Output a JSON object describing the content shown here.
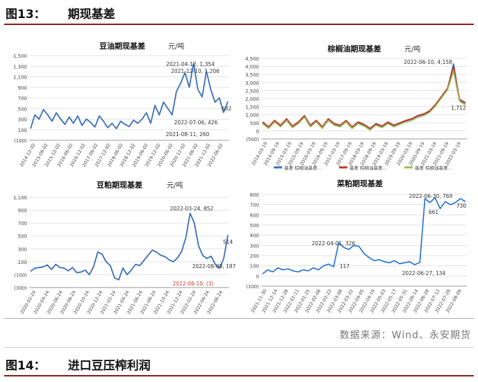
{
  "fig13": {
    "title": "图13：",
    "subtitle": "期现基差"
  },
  "fig14": {
    "title": "图14：",
    "subtitle": "进口豆压榨利润"
  },
  "source": "数据来源：Wind、永安期货",
  "colors": {
    "rule": "#8b1a1a",
    "series_blue": "#3b6fb6",
    "series_red": "#c0392b",
    "series_green": "#9bbb59"
  },
  "chart_data": [
    {
      "type": "line",
      "title": "豆油期现基差",
      "unit": "元/吨",
      "ylim": [
        -100,
        1500
      ],
      "yticks": [
        "1,500",
        "1,300",
        "1,100",
        "900",
        "700",
        "500",
        "300",
        "100",
        "(100)"
      ],
      "xticks": [
        "2014-12-02",
        "2015-06-02",
        "2015-12-02",
        "2016-06-02",
        "2016-12-02",
        "2017-06-02",
        "2017-12-02",
        "2018-06-02",
        "2018-12-02",
        "2019-06-02",
        "2019-12-02",
        "2020-06-02",
        "2020-12-02",
        "2021-06-02",
        "2021-12-02",
        "2022-06-02"
      ],
      "series": [
        {
          "values": [
            120,
            380,
            300,
            480,
            380,
            260,
            420,
            300,
            200,
            340,
            220,
            360,
            180,
            300,
            240,
            150,
            360,
            260,
            140,
            220,
            120,
            260,
            200,
            160,
            280,
            220,
            300,
            420,
            220,
            560,
            380,
            620,
            500,
            380,
            820,
            980,
            1180,
            900,
            1354,
            860,
            720,
            1206,
            860,
            620,
            700,
            426,
            632
          ]
        }
      ],
      "annotations": [
        "2021-04-12, 1,354",
        "2021-12-10, 1,206",
        "632",
        "2022-07-06, 426",
        "2021-08-11, 260"
      ]
    },
    {
      "type": "line",
      "title": "棕榈油期现基差",
      "unit": "元/吨",
      "ylim": [
        -500,
        4500
      ],
      "yticks": [
        "4,500",
        "4,000",
        "3,500",
        "3,000",
        "2,500",
        "2,000",
        "1,500",
        "1,000",
        "500",
        "0",
        "(500)"
      ],
      "xticks": [
        "2014-03-19",
        "2014-09-19",
        "2015-03-19",
        "2015-09-19",
        "2016-03-19",
        "2016-09-19",
        "2017-03-19",
        "2017-09-19",
        "2018-03-19",
        "2018-09-19",
        "2019-03-19",
        "2019-09-19",
        "2020-03-19",
        "2020-09-19",
        "2021-03-19",
        "2021-09-19",
        "2022-03-19"
      ],
      "series": [
        {
          "name": "基差 棕榈油基差…",
          "values": [
            500,
            200,
            600,
            300,
            700,
            250,
            500,
            900,
            300,
            600,
            200,
            700,
            400,
            300,
            600,
            200,
            500,
            350,
            100,
            400,
            250,
            500,
            300,
            450,
            600,
            700,
            900,
            1000,
            1200,
            1600,
            2100,
            2600,
            4158,
            1900,
            1712
          ]
        },
        {
          "name": "基差 棕榈油基差…",
          "values": [
            550,
            250,
            650,
            350,
            750,
            300,
            550,
            950,
            350,
            650,
            250,
            750,
            450,
            350,
            650,
            250,
            550,
            400,
            150,
            450,
            300,
            550,
            350,
            500,
            650,
            750,
            950,
            1050,
            1250,
            1650,
            2150,
            2650,
            4000,
            1950,
            1750
          ]
        },
        {
          "name": "基差 棕榈油基差…",
          "values": [
            450,
            150,
            550,
            250,
            650,
            200,
            450,
            850,
            250,
            550,
            150,
            650,
            350,
            250,
            550,
            150,
            450,
            300,
            50,
            350,
            200,
            450,
            250,
            400,
            550,
            650,
            850,
            950,
            1150,
            1550,
            2050,
            2550,
            3700,
            1850,
            1600
          ]
        }
      ],
      "annotations": [
        "2022-06-10, 4,158",
        "1,712"
      ]
    },
    {
      "type": "line",
      "title": "豆粕期现基差",
      "unit": "元/吨",
      "ylim": [
        -300,
        1100
      ],
      "yticks": [
        "1,100",
        "900",
        "700",
        "500",
        "300",
        "100",
        "(100)",
        "(300)"
      ],
      "xticks": [
        "2020-02-24",
        "2020-04-24",
        "2020-06-24",
        "2020-08-24",
        "2020-10-24",
        "2020-12-24",
        "2021-02-24",
        "2021-04-24",
        "2021-06-24",
        "2021-08-24",
        "2021-10-24",
        "2021-12-24",
        "2022-02-24",
        "2022-04-24",
        "2022-06-24"
      ],
      "series": [
        {
          "values": [
            -50,
            0,
            10,
            20,
            50,
            -20,
            60,
            10,
            0,
            -40,
            10,
            -70,
            -60,
            -30,
            -100,
            20,
            250,
            220,
            100,
            40,
            -150,
            -180,
            0,
            -100,
            -30,
            60,
            40,
            120,
            200,
            280,
            250,
            200,
            180,
            130,
            100,
            160,
            260,
            480,
            852,
            700,
            350,
            200,
            150,
            187,
            60,
            -3,
            150,
            514
          ]
        }
      ],
      "annotations": [
        "2022-03-24, 852",
        "2022-08-09, 187",
        "514",
        "2022-06-10, (3)"
      ]
    },
    {
      "type": "line",
      "title": "菜粕期现基差",
      "ylim": [
        -100,
        800
      ],
      "yticks": [
        "800",
        "700",
        "600",
        "500",
        "400",
        "300",
        "200",
        "100",
        "0",
        "(100)"
      ],
      "xticks": [
        "2021-11-30",
        "2021-12-14",
        "2021-12-28",
        "2022-01-11",
        "2022-01-25",
        "2022-02-08",
        "2022-02-22",
        "2022-03-08",
        "2022-03-22",
        "2022-04-05",
        "2022-04-19",
        "2022-05-03",
        "2022-05-17",
        "2022-05-31",
        "2022-06-14",
        "2022-06-28",
        "2022-07-12",
        "2022-07-26",
        "2022-08-09"
      ],
      "series": [
        {
          "values": [
            20,
            60,
            40,
            80,
            60,
            70,
            50,
            40,
            60,
            50,
            80,
            60,
            100,
            117,
            90,
            326,
            280,
            260,
            300,
            290,
            220,
            180,
            150,
            160,
            140,
            130,
            150,
            120,
            130,
            140,
            110,
            134,
            760,
            720,
            769,
            661,
            730,
            700,
            720,
            760,
            730
          ]
        }
      ],
      "annotations": [
        "2022-06-30, 769",
        "730",
        "661",
        "2022-04-01, 326",
        "117",
        "2022-06-27, 134"
      ]
    }
  ]
}
